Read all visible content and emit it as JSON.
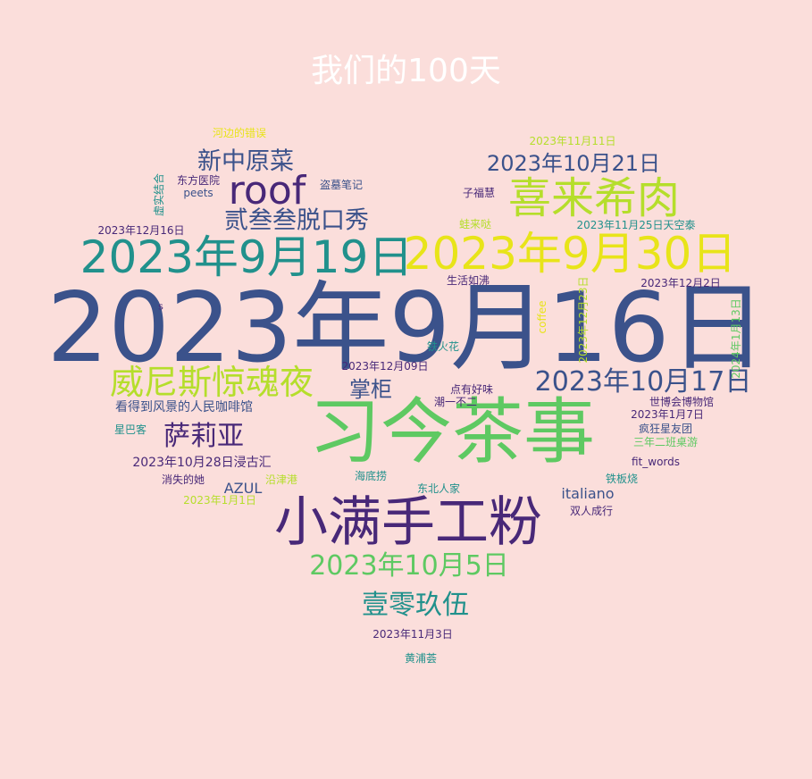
{
  "title": "我们的100天",
  "palette": {
    "background": "#fbdedb",
    "title": "#ffffff",
    "navy": "#3b528b",
    "purple": "#482878",
    "teal": "#21918c",
    "green": "#5ec962",
    "lime": "#b5de2b",
    "yellow": "#e8e419"
  },
  "words": [
    {
      "text": "2023年9月16日",
      "color": "#3b528b"
    },
    {
      "text": "习今茶事",
      "color": "#5ec962"
    },
    {
      "text": "小满手工粉",
      "color": "#482878"
    },
    {
      "text": "2023年9月30日",
      "color": "#e8e419"
    },
    {
      "text": "2023年9月19日",
      "color": "#21918c"
    },
    {
      "text": "喜来希肉",
      "color": "#b5de2b"
    },
    {
      "text": "roof",
      "color": "#482878"
    },
    {
      "text": "威尼斯惊魂夜",
      "color": "#b5de2b"
    },
    {
      "text": "2023年10月5日",
      "color": "#5ec962"
    },
    {
      "text": "2023年10月17日",
      "color": "#3b528b"
    },
    {
      "text": "2023年10月21日",
      "color": "#3b528b"
    },
    {
      "text": "新中原菜",
      "color": "#3b528b"
    },
    {
      "text": "贰叁叁脱口秀",
      "color": "#3b528b"
    },
    {
      "text": "萨莉亚",
      "color": "#482878"
    },
    {
      "text": "壹零玖伍",
      "color": "#21918c"
    },
    {
      "text": "掌柜",
      "color": "#3b528b"
    },
    {
      "text": "看得到风景的人民咖啡馆",
      "color": "#3b528b"
    },
    {
      "text": "2023年10月28日浸古汇",
      "color": "#482878"
    },
    {
      "text": "italiano",
      "color": "#3b528b"
    },
    {
      "text": "AZUL",
      "color": "#3b528b"
    },
    {
      "text": "2023年11月11日",
      "color": "#b5de2b"
    },
    {
      "text": "河边的错误",
      "color": "#e8e419"
    },
    {
      "text": "东方医院",
      "color": "#482878"
    },
    {
      "text": "盗墓笔记",
      "color": "#3b528b"
    },
    {
      "text": "peets",
      "color": "#3b528b"
    },
    {
      "text": "子福慧",
      "color": "#482878"
    },
    {
      "text": "2023年11月25日天空泰",
      "color": "#21918c"
    },
    {
      "text": "蛙来哒",
      "color": "#b5de2b"
    },
    {
      "text": "2023年12月16日",
      "color": "#482878"
    },
    {
      "text": "虚实结合",
      "color": "#21918c"
    },
    {
      "text": "生活如沸",
      "color": "#482878"
    },
    {
      "text": "2023年12月2日",
      "color": "#482878"
    },
    {
      "text": "s",
      "color": "#482878"
    },
    {
      "text": "coffee",
      "color": "#e8e419"
    },
    {
      "text": "2023年12月23日",
      "color": "#b5de2b"
    },
    {
      "text": "2024年1月13日",
      "color": "#5ec962"
    },
    {
      "text": "铁火花",
      "color": "#21918c"
    },
    {
      "text": "2023年12月09日",
      "color": "#482878"
    },
    {
      "text": "点有好味",
      "color": "#482878"
    },
    {
      "text": "潮一不二",
      "color": "#482878"
    },
    {
      "text": "世博会博物馆",
      "color": "#482878"
    },
    {
      "text": "2023年1月7日",
      "color": "#482878"
    },
    {
      "text": "疯狂星友团",
      "color": "#3b528b"
    },
    {
      "text": "三年二班桌游",
      "color": "#5ec962"
    },
    {
      "text": "fit_words",
      "color": "#482878"
    },
    {
      "text": "铁板烧",
      "color": "#21918c"
    },
    {
      "text": "星巴客",
      "color": "#21918c"
    },
    {
      "text": "消失的她",
      "color": "#482878"
    },
    {
      "text": "沿津港",
      "color": "#b5de2b"
    },
    {
      "text": "海底捞",
      "color": "#21918c"
    },
    {
      "text": "东北人家",
      "color": "#21918c"
    },
    {
      "text": "双人成行",
      "color": "#482878"
    },
    {
      "text": "2023年1月1日",
      "color": "#b5de2b"
    },
    {
      "text": "2023年11月3日",
      "color": "#482878"
    },
    {
      "text": "黄浦荟",
      "color": "#21918c"
    }
  ]
}
